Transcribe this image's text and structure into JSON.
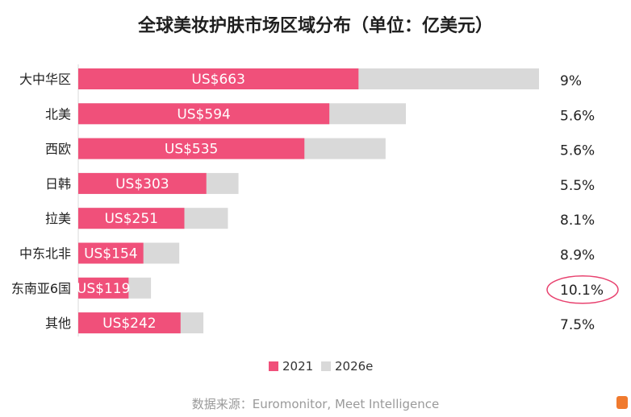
{
  "chart_data": {
    "type": "bar",
    "orientation": "horizontal",
    "stacked": "overlay",
    "title": "全球美妆护肤市场区域分布（单位：亿美元）",
    "categories": [
      "大中华区",
      "北美",
      "西欧",
      "日韩",
      "拉美",
      "中东北非",
      "东南亚6国",
      "其他"
    ],
    "series": [
      {
        "name": "2021",
        "color": "#f0507a",
        "values": [
          663,
          594,
          535,
          303,
          251,
          154,
          119,
          242
        ],
        "labels": [
          "US$663",
          "US$594",
          "US$535",
          "US$303",
          "US$251",
          "US$154",
          "US$119",
          "US$242"
        ]
      },
      {
        "name": "2026e",
        "color": "#d9d9d9",
        "values": [
          1090,
          775,
          727,
          379,
          354,
          239,
          172,
          296
        ]
      }
    ],
    "growth_labels": [
      "9%",
      "5.6%",
      "5.6%",
      "5.5%",
      "8.1%",
      "8.9%",
      "10.1%",
      "7.5%"
    ],
    "highlight_index": 6,
    "highlight_color": "#e8426f",
    "xlim": [
      0,
      1100
    ],
    "legend_position": "bottom",
    "source": "数据来源：Euromonitor, Meet Intelligence"
  }
}
